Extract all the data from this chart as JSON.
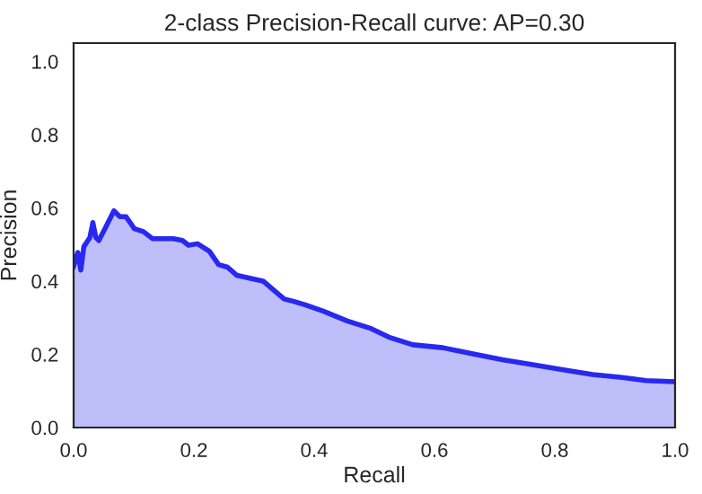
{
  "chart_data": {
    "type": "area",
    "title": "2-class Precision-Recall curve: AP=0.30",
    "xlabel": "Recall",
    "ylabel": "Precision",
    "x": [
      0,
      0.007,
      0.012,
      0.017,
      0.027,
      0.032,
      0.037,
      0.042,
      0.052,
      0.067,
      0.077,
      0.087,
      0.101,
      0.116,
      0.131,
      0.166,
      0.181,
      0.191,
      0.206,
      0.226,
      0.241,
      0.256,
      0.271,
      0.315,
      0.35,
      0.365,
      0.385,
      0.415,
      0.455,
      0.495,
      0.524,
      0.564,
      0.614,
      0.664,
      0.713,
      0.763,
      0.812,
      0.863,
      0.912,
      0.952,
      1.0
    ],
    "series": [
      {
        "color": "#2828f0",
        "values": [
          0.44,
          0.478,
          0.43,
          0.494,
          0.519,
          0.56,
          0.519,
          0.511,
          0.543,
          0.592,
          0.576,
          0.576,
          0.543,
          0.535,
          0.516,
          0.516,
          0.511,
          0.498,
          0.502,
          0.481,
          0.445,
          0.438,
          0.416,
          0.4,
          0.351,
          0.345,
          0.335,
          0.318,
          0.291,
          0.27,
          0.247,
          0.226,
          0.218,
          0.201,
          0.185,
          0.172,
          0.158,
          0.145,
          0.137,
          0.128,
          0.125
        ]
      }
    ],
    "xlim": [
      0,
      1
    ],
    "ylim": [
      0,
      1.05
    ],
    "xticks": [
      {
        "value": 0,
        "label": "0.0"
      },
      {
        "value": 0.2,
        "label": "0.2"
      },
      {
        "value": 0.4,
        "label": "0.4"
      },
      {
        "value": 0.6,
        "label": "0.6"
      },
      {
        "value": 0.8,
        "label": "0.8"
      },
      {
        "value": 1,
        "label": "1.0"
      }
    ],
    "yticks": [
      {
        "value": 0,
        "label": "0.0"
      },
      {
        "value": 0.2,
        "label": "0.2"
      },
      {
        "value": 0.4,
        "label": "0.4"
      },
      {
        "value": 0.6,
        "label": "0.6"
      },
      {
        "value": 0.8,
        "label": "0.8"
      },
      {
        "value": 1,
        "label": "1.0"
      }
    ],
    "grid": false
  }
}
